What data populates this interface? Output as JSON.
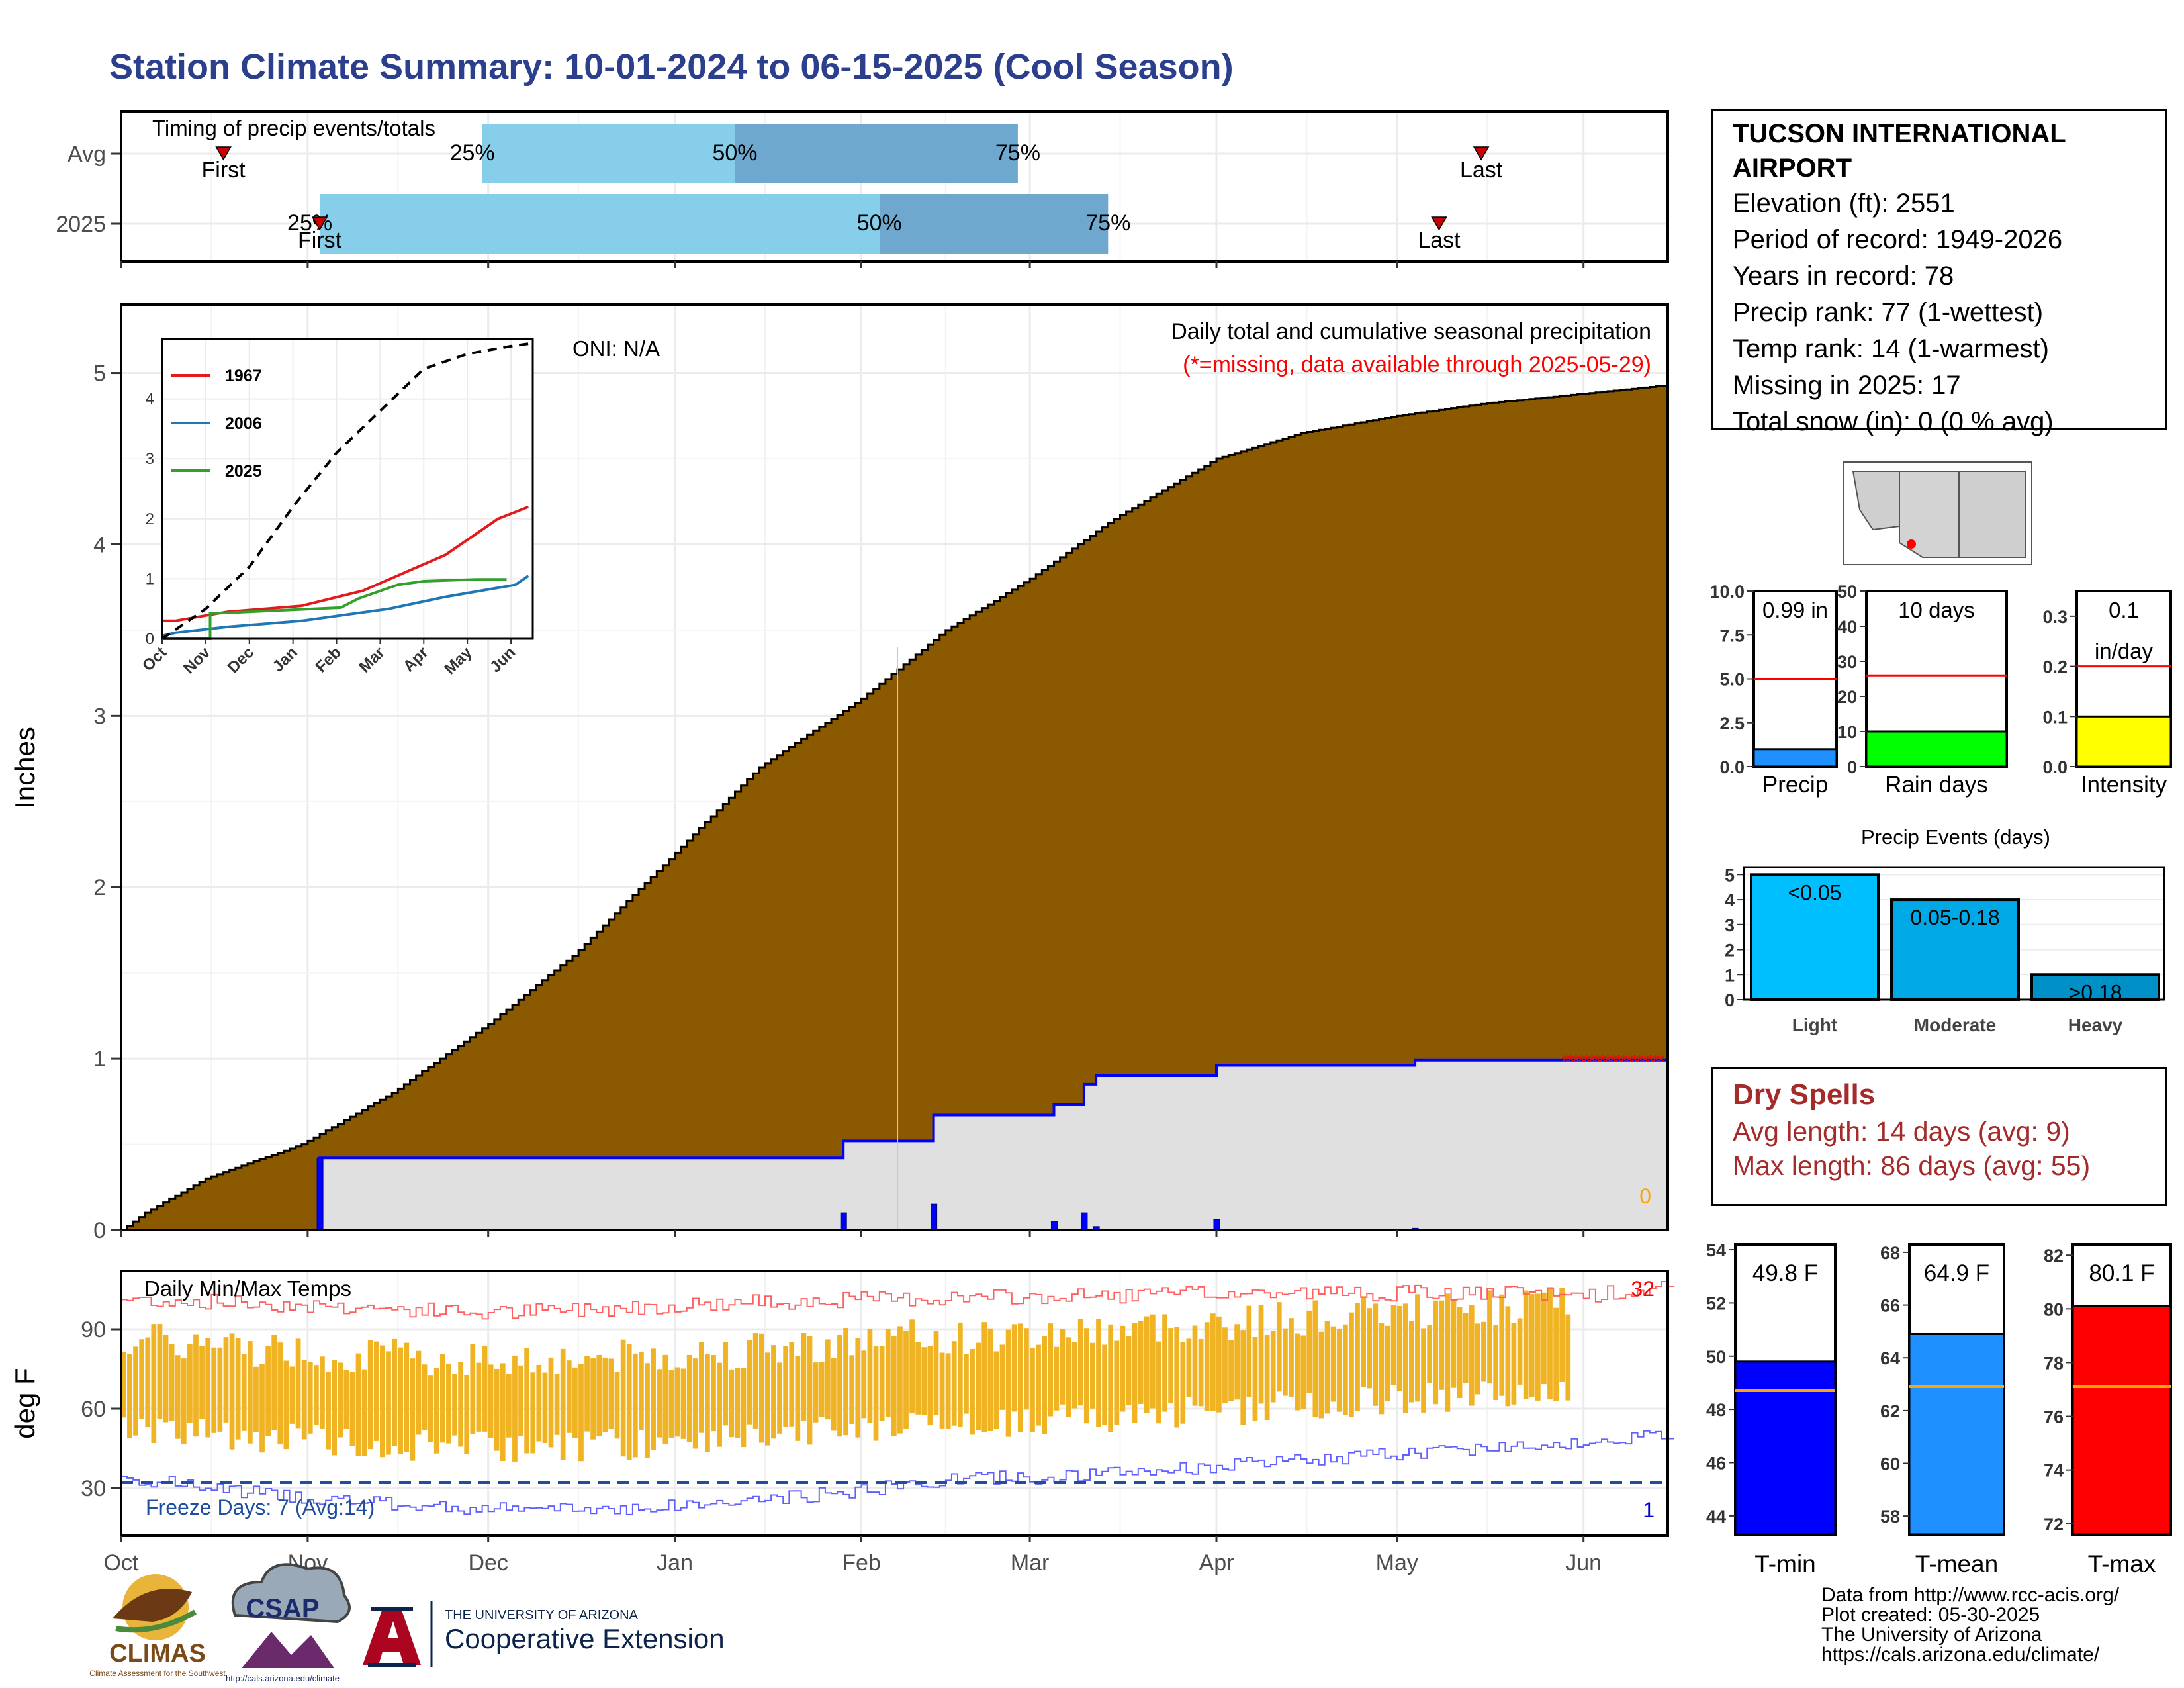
{
  "title": "Station Climate Summary: 10-01-2024 to 06-15-2025 (Cool Season)",
  "station": {
    "name_line1": "TUCSON INTERNATIONAL",
    "name_line2": "AIRPORT",
    "elevation": "Elevation (ft): 2551",
    "period": "Period of record: 1949-2026",
    "years": "Years in record: 78",
    "precip_rank": "Precip rank: 77 (1-wettest)",
    "temp_rank": "Temp rank: 14 (1-warmest)",
    "missing": "Missing in 2025: 17",
    "snow": "Total snow (in): 0 (0 % avg)"
  },
  "dry_spells": {
    "title": "Dry Spells",
    "avg": "Avg length: 14 days (avg: 9)",
    "max": "Max length: 86 days (avg: 55)"
  },
  "credits": {
    "line1": "Data from http://www.rcc-acis.org/",
    "line2": "Plot created: 05-30-2025",
    "line3": "The University of Arizona",
    "line4": "https://cals.arizona.edu/climate/"
  },
  "logos": {
    "climas": "CLIMAS",
    "climas_sub": "Climate Assessment for the Southwest",
    "csap": "CSAP",
    "csap_url": "http://cals.arizona.edu/climate",
    "ua_small": "THE UNIVERSITY OF ARIZONA",
    "ua_big": "Cooperative Extension"
  },
  "chart_data": [
    {
      "id": "timing",
      "type": "bar",
      "title": "Timing of precip events/totals",
      "rows": [
        {
          "label": "Avg",
          "first": "2024-10-18",
          "p25": "2024-11-30",
          "p50": "2025-01-11",
          "p75": "2025-02-27",
          "last": "2025-05-15"
        },
        {
          "label": "2025",
          "first": "2024-11-03",
          "p25": "2024-11-03",
          "p50": "2025-02-04",
          "p75": "2025-03-14",
          "last": "2025-05-08"
        }
      ],
      "labels": {
        "first": "First",
        "last": "Last",
        "p25": "25%",
        "p50": "50%",
        "p75": "75%"
      },
      "colors": {
        "p25_50": "#87ceeb",
        "p50_75": "#6fa8cf"
      }
    },
    {
      "id": "precip",
      "type": "area",
      "title": "Daily total and cumulative seasonal precipitation",
      "subtitle": "(*=missing, data available through 2025-05-29)",
      "oni": "ONI: N/A",
      "ylabel": "Inches",
      "ylim": [
        0,
        5.4
      ],
      "yticks": [
        0,
        1,
        2,
        3,
        4,
        5
      ],
      "xlim": [
        "2024-10-01",
        "2025-06-15"
      ],
      "xticks": [
        "Oct",
        "Nov",
        "Dec",
        "Jan",
        "Feb",
        "Mar",
        "Apr",
        "May",
        "Jun"
      ],
      "zero_label": "0",
      "avg_cumulative": [
        [
          "2024-10-01",
          0
        ],
        [
          "2024-10-05",
          0.1
        ],
        [
          "2024-10-15",
          0.3
        ],
        [
          "2024-10-31",
          0.5
        ],
        [
          "2024-11-15",
          0.8
        ],
        [
          "2024-12-01",
          1.2
        ],
        [
          "2024-12-15",
          1.6
        ],
        [
          "2025-01-01",
          2.2
        ],
        [
          "2025-01-15",
          2.7
        ],
        [
          "2025-02-01",
          3.1
        ],
        [
          "2025-02-15",
          3.5
        ],
        [
          "2025-03-01",
          3.8
        ],
        [
          "2025-03-15",
          4.15
        ],
        [
          "2025-04-01",
          4.5
        ],
        [
          "2025-04-15",
          4.65
        ],
        [
          "2025-05-01",
          4.75
        ],
        [
          "2025-05-15",
          4.82
        ],
        [
          "2025-06-01",
          4.88
        ],
        [
          "2025-06-15",
          4.93
        ]
      ],
      "obs_cumulative": [
        [
          "2024-10-01",
          0
        ],
        [
          "2024-11-03",
          0
        ],
        [
          "2024-11-03",
          0.42
        ],
        [
          "2025-01-29",
          0.42
        ],
        [
          "2025-01-29",
          0.52
        ],
        [
          "2025-02-13",
          0.52
        ],
        [
          "2025-02-13",
          0.67
        ],
        [
          "2025-03-05",
          0.67
        ],
        [
          "2025-03-05",
          0.73
        ],
        [
          "2025-03-10",
          0.73
        ],
        [
          "2025-03-10",
          0.85
        ],
        [
          "2025-03-12",
          0.85
        ],
        [
          "2025-03-12",
          0.9
        ],
        [
          "2025-04-01",
          0.9
        ],
        [
          "2025-04-01",
          0.96
        ],
        [
          "2025-05-04",
          0.96
        ],
        [
          "2025-05-04",
          0.99
        ],
        [
          "2025-06-15",
          0.99
        ]
      ],
      "missing_from": "2025-05-29",
      "daily_bars": [
        [
          "2024-11-03",
          0.42
        ],
        [
          "2025-01-29",
          0.1
        ],
        [
          "2025-02-13",
          0.15
        ],
        [
          "2025-03-05",
          0.05
        ],
        [
          "2025-03-10",
          0.1
        ],
        [
          "2025-03-12",
          0.02
        ],
        [
          "2025-04-01",
          0.06
        ],
        [
          "2025-05-04",
          0.01
        ]
      ],
      "colors": {
        "avg": "#8b5a00",
        "obs_fill": "#e0e0e0",
        "obs_line": "#0000ff",
        "missing": "#ff0000"
      }
    },
    {
      "id": "inset",
      "type": "line",
      "xticks": [
        "Oct",
        "Nov",
        "Dec",
        "Jan",
        "Feb",
        "Mar",
        "Apr",
        "May",
        "Jun"
      ],
      "yticks": [
        0,
        1,
        2,
        3,
        4
      ],
      "series": [
        {
          "name": "1967",
          "color": "#e31a1c",
          "values": [
            [
              0,
              0.3
            ],
            [
              0.3,
              0.3
            ],
            [
              1.5,
              0.45
            ],
            [
              3.2,
              0.55
            ],
            [
              4.6,
              0.8
            ],
            [
              6.5,
              1.4
            ],
            [
              7.7,
              2.0
            ],
            [
              8.4,
              2.2
            ]
          ]
        },
        {
          "name": "2006",
          "color": "#1f78b4",
          "values": [
            [
              0,
              0.05
            ],
            [
              0.3,
              0.1
            ],
            [
              1.5,
              0.2
            ],
            [
              3.2,
              0.3
            ],
            [
              5.2,
              0.5
            ],
            [
              6.5,
              0.7
            ],
            [
              8.1,
              0.9
            ],
            [
              8.4,
              1.05
            ]
          ]
        },
        {
          "name": "2025",
          "color": "#33a02c",
          "values": [
            [
              0,
              0
            ],
            [
              1.1,
              0
            ],
            [
              1.1,
              0.42
            ],
            [
              4.1,
              0.52
            ],
            [
              4.5,
              0.67
            ],
            [
              5.4,
              0.9
            ],
            [
              6.0,
              0.96
            ],
            [
              7.2,
              0.99
            ],
            [
              7.9,
              0.99
            ]
          ]
        },
        {
          "name": "",
          "color": "#000000",
          "dashed": true,
          "values": [
            [
              0,
              0
            ],
            [
              1,
              0.5
            ],
            [
              2,
              1.2
            ],
            [
              3,
              2.2
            ],
            [
              4,
              3.1
            ],
            [
              5,
              3.8
            ],
            [
              6,
              4.5
            ],
            [
              7,
              4.75
            ],
            [
              8,
              4.88
            ],
            [
              8.5,
              4.93
            ]
          ]
        }
      ]
    },
    {
      "id": "gauges_precip",
      "type": "bar",
      "gauges": [
        {
          "label": "Precip",
          "value": 0.99,
          "value_text": "0.99 in",
          "avg": 5.0,
          "ymax": 10,
          "yticks": [
            "0.0",
            "2.5",
            "5.0",
            "7.5",
            "10.0"
          ],
          "color": "#1e90ff"
        },
        {
          "label": "Rain days",
          "value": 10,
          "value_text": "10 days",
          "avg": 26,
          "ymax": 50,
          "yticks": [
            "0",
            "10",
            "20",
            "30",
            "40",
            "50"
          ],
          "color": "#00ff00"
        },
        {
          "label": "Intensity",
          "value": 0.1,
          "value_text": "0.1",
          "value_text2": "in/day",
          "avg": 0.2,
          "ymax": 0.35,
          "yticks": [
            "0.0",
            "0.1",
            "0.2",
            "0.3"
          ],
          "color": "#ffff00"
        }
      ]
    },
    {
      "id": "events",
      "type": "bar",
      "title": "Precip Events (days)",
      "categories": [
        "Light",
        "Moderate",
        "Heavy"
      ],
      "values": [
        5,
        4,
        1
      ],
      "bar_labels": [
        "<0.05",
        "0.05-0.18",
        ">0.18"
      ],
      "yticks": [
        0,
        1,
        2,
        3,
        4,
        5
      ],
      "colors": [
        "#00bfff",
        "#00a8e6",
        "#0090c8"
      ]
    },
    {
      "id": "temps",
      "type": "bar",
      "title": "Daily Min/Max Temps",
      "ylabel": "deg F",
      "ylim": [
        12,
        112
      ],
      "yticks": [
        30,
        60,
        90
      ],
      "freeze_label": "Freeze Days: 7 (Avg:14)",
      "label_32": "32",
      "label_1": "1",
      "freeze_line": 32,
      "xticks": [
        "Oct",
        "Nov",
        "Dec",
        "Jan",
        "Feb",
        "Mar",
        "Apr",
        "May",
        "Jun"
      ],
      "obs_through": "2025-05-29",
      "colors": {
        "bars": "#f0b323",
        "record_high": "#ff6060",
        "record_low": "#6060ff",
        "freeze": "#1f4e9c"
      }
    },
    {
      "id": "gauges_temp",
      "type": "bar",
      "gauges": [
        {
          "label": "T-min",
          "value": 49.8,
          "value_text": "49.8 F",
          "avg": 48.7,
          "ymin": 43.3,
          "ymax": 54.2,
          "yticks": [
            "44",
            "46",
            "48",
            "50",
            "52",
            "54"
          ],
          "color": "#0000ff"
        },
        {
          "label": "T-mean",
          "value": 64.9,
          "value_text": "64.9 F",
          "avg": 62.9,
          "ymin": 57.3,
          "ymax": 68.3,
          "yticks": [
            "58",
            "60",
            "62",
            "64",
            "66",
            "68"
          ],
          "color": "#1e90ff"
        },
        {
          "label": "T-max",
          "value": 80.1,
          "value_text": "80.1 F",
          "avg": 77.1,
          "ymin": 71.6,
          "ymax": 82.4,
          "yticks": [
            "72",
            "74",
            "76",
            "78",
            "80",
            "82"
          ],
          "color": "#ff0000"
        }
      ]
    }
  ]
}
